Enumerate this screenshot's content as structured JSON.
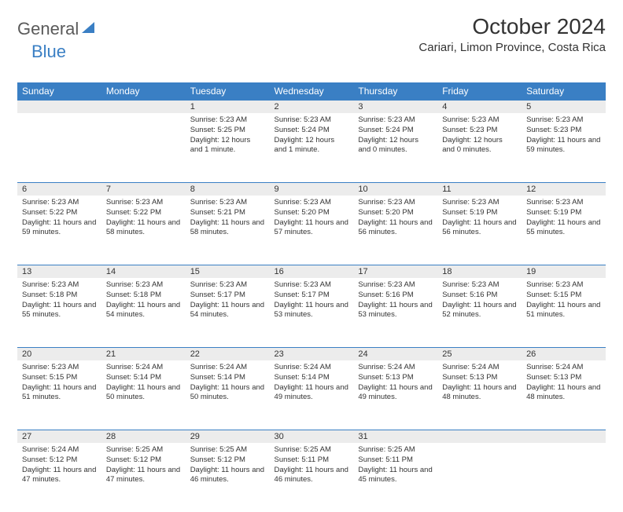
{
  "brand": {
    "part1": "General",
    "part2": "Blue"
  },
  "title": "October 2024",
  "location": "Cariari, Limon Province, Costa Rica",
  "colors": {
    "header_bg": "#3a7fc4",
    "header_text": "#ffffff",
    "daynum_bg": "#ececec",
    "border_top": "#3a7fc4",
    "text": "#333333",
    "background": "#ffffff"
  },
  "weekdays": [
    "Sunday",
    "Monday",
    "Tuesday",
    "Wednesday",
    "Thursday",
    "Friday",
    "Saturday"
  ],
  "weeks": [
    [
      null,
      null,
      {
        "n": "1",
        "sunrise": "5:23 AM",
        "sunset": "5:25 PM",
        "daylight": "12 hours and 1 minute."
      },
      {
        "n": "2",
        "sunrise": "5:23 AM",
        "sunset": "5:24 PM",
        "daylight": "12 hours and 1 minute."
      },
      {
        "n": "3",
        "sunrise": "5:23 AM",
        "sunset": "5:24 PM",
        "daylight": "12 hours and 0 minutes."
      },
      {
        "n": "4",
        "sunrise": "5:23 AM",
        "sunset": "5:23 PM",
        "daylight": "12 hours and 0 minutes."
      },
      {
        "n": "5",
        "sunrise": "5:23 AM",
        "sunset": "5:23 PM",
        "daylight": "11 hours and 59 minutes."
      }
    ],
    [
      {
        "n": "6",
        "sunrise": "5:23 AM",
        "sunset": "5:22 PM",
        "daylight": "11 hours and 59 minutes."
      },
      {
        "n": "7",
        "sunrise": "5:23 AM",
        "sunset": "5:22 PM",
        "daylight": "11 hours and 58 minutes."
      },
      {
        "n": "8",
        "sunrise": "5:23 AM",
        "sunset": "5:21 PM",
        "daylight": "11 hours and 58 minutes."
      },
      {
        "n": "9",
        "sunrise": "5:23 AM",
        "sunset": "5:20 PM",
        "daylight": "11 hours and 57 minutes."
      },
      {
        "n": "10",
        "sunrise": "5:23 AM",
        "sunset": "5:20 PM",
        "daylight": "11 hours and 56 minutes."
      },
      {
        "n": "11",
        "sunrise": "5:23 AM",
        "sunset": "5:19 PM",
        "daylight": "11 hours and 56 minutes."
      },
      {
        "n": "12",
        "sunrise": "5:23 AM",
        "sunset": "5:19 PM",
        "daylight": "11 hours and 55 minutes."
      }
    ],
    [
      {
        "n": "13",
        "sunrise": "5:23 AM",
        "sunset": "5:18 PM",
        "daylight": "11 hours and 55 minutes."
      },
      {
        "n": "14",
        "sunrise": "5:23 AM",
        "sunset": "5:18 PM",
        "daylight": "11 hours and 54 minutes."
      },
      {
        "n": "15",
        "sunrise": "5:23 AM",
        "sunset": "5:17 PM",
        "daylight": "11 hours and 54 minutes."
      },
      {
        "n": "16",
        "sunrise": "5:23 AM",
        "sunset": "5:17 PM",
        "daylight": "11 hours and 53 minutes."
      },
      {
        "n": "17",
        "sunrise": "5:23 AM",
        "sunset": "5:16 PM",
        "daylight": "11 hours and 53 minutes."
      },
      {
        "n": "18",
        "sunrise": "5:23 AM",
        "sunset": "5:16 PM",
        "daylight": "11 hours and 52 minutes."
      },
      {
        "n": "19",
        "sunrise": "5:23 AM",
        "sunset": "5:15 PM",
        "daylight": "11 hours and 51 minutes."
      }
    ],
    [
      {
        "n": "20",
        "sunrise": "5:23 AM",
        "sunset": "5:15 PM",
        "daylight": "11 hours and 51 minutes."
      },
      {
        "n": "21",
        "sunrise": "5:24 AM",
        "sunset": "5:14 PM",
        "daylight": "11 hours and 50 minutes."
      },
      {
        "n": "22",
        "sunrise": "5:24 AM",
        "sunset": "5:14 PM",
        "daylight": "11 hours and 50 minutes."
      },
      {
        "n": "23",
        "sunrise": "5:24 AM",
        "sunset": "5:14 PM",
        "daylight": "11 hours and 49 minutes."
      },
      {
        "n": "24",
        "sunrise": "5:24 AM",
        "sunset": "5:13 PM",
        "daylight": "11 hours and 49 minutes."
      },
      {
        "n": "25",
        "sunrise": "5:24 AM",
        "sunset": "5:13 PM",
        "daylight": "11 hours and 48 minutes."
      },
      {
        "n": "26",
        "sunrise": "5:24 AM",
        "sunset": "5:13 PM",
        "daylight": "11 hours and 48 minutes."
      }
    ],
    [
      {
        "n": "27",
        "sunrise": "5:24 AM",
        "sunset": "5:12 PM",
        "daylight": "11 hours and 47 minutes."
      },
      {
        "n": "28",
        "sunrise": "5:25 AM",
        "sunset": "5:12 PM",
        "daylight": "11 hours and 47 minutes."
      },
      {
        "n": "29",
        "sunrise": "5:25 AM",
        "sunset": "5:12 PM",
        "daylight": "11 hours and 46 minutes."
      },
      {
        "n": "30",
        "sunrise": "5:25 AM",
        "sunset": "5:11 PM",
        "daylight": "11 hours and 46 minutes."
      },
      {
        "n": "31",
        "sunrise": "5:25 AM",
        "sunset": "5:11 PM",
        "daylight": "11 hours and 45 minutes."
      },
      null,
      null
    ]
  ],
  "labels": {
    "sunrise": "Sunrise:",
    "sunset": "Sunset:",
    "daylight": "Daylight:"
  }
}
